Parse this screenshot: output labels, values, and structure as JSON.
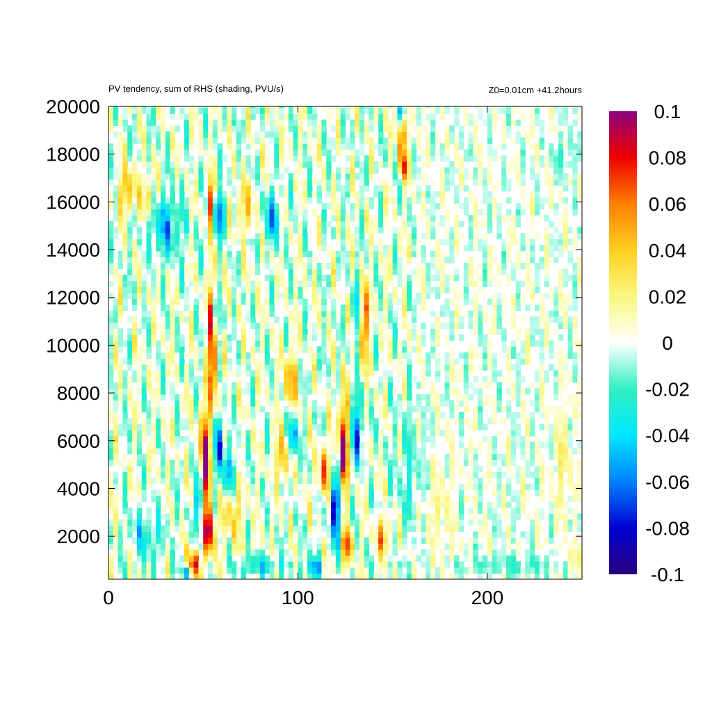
{
  "chart_data": {
    "type": "heatmap",
    "title": "PV tendency, sum of RHS (shading, PVU/s)",
    "subtitle": "Z0=0.01cm   +41.2hours",
    "xlabel": "",
    "ylabel": "",
    "xlim": [
      0,
      250
    ],
    "ylim": [
      200,
      20000
    ],
    "x_ticks": [
      0,
      100,
      200
    ],
    "y_ticks": [
      2000,
      4000,
      6000,
      8000,
      10000,
      12000,
      14000,
      16000,
      18000,
      20000
    ],
    "colorbar": {
      "min": -0.1,
      "max": 0.1,
      "ticks": [
        0.1,
        0.08,
        0.06,
        0.04,
        0.02,
        0,
        -0.02,
        -0.04,
        -0.06,
        -0.08,
        -0.1
      ],
      "tick_labels": [
        "0.1",
        "0.08",
        "0.06",
        "0.04",
        "0.02",
        "0",
        "-0.02",
        "-0.04",
        "-0.06",
        "-0.08",
        "-0.1"
      ],
      "colors": [
        "#2a0080",
        "#0000d0",
        "#0080ff",
        "#00e8ff",
        "#30f0c0",
        "#ffffff",
        "#f8f880",
        "#ffd020",
        "#ff8000",
        "#f00000",
        "#8a0080"
      ]
    },
    "grid": false,
    "features": [
      {
        "x": 55,
        "y": 10000,
        "sx": 1.6,
        "sy": 1800,
        "value": 0.1
      },
      {
        "x": 57,
        "y": 11000,
        "sx": 1.2,
        "sy": 900,
        "value": -0.06
      },
      {
        "x": 51,
        "y": 5000,
        "sx": 2.0,
        "sy": 1500,
        "value": 0.1
      },
      {
        "x": 48,
        "y": 3600,
        "sx": 1.4,
        "sy": 900,
        "value": -0.08
      },
      {
        "x": 53,
        "y": 2200,
        "sx": 1.8,
        "sy": 700,
        "value": 0.09
      },
      {
        "x": 45,
        "y": 800,
        "sx": 2.2,
        "sy": 400,
        "value": 0.09
      },
      {
        "x": 42,
        "y": 500,
        "sx": 1.2,
        "sy": 250,
        "value": -0.1
      },
      {
        "x": 58,
        "y": 6000,
        "sx": 1.5,
        "sy": 900,
        "value": -0.07
      },
      {
        "x": 65,
        "y": 3000,
        "sx": 4.5,
        "sy": 900,
        "value": 0.035
      },
      {
        "x": 63,
        "y": 4600,
        "sx": 3.5,
        "sy": 800,
        "value": -0.04
      },
      {
        "x": 124,
        "y": 5800,
        "sx": 1.8,
        "sy": 1500,
        "value": 0.095
      },
      {
        "x": 120,
        "y": 3200,
        "sx": 1.8,
        "sy": 1000,
        "value": -0.09
      },
      {
        "x": 126,
        "y": 1600,
        "sx": 1.8,
        "sy": 500,
        "value": 0.07
      },
      {
        "x": 131,
        "y": 6500,
        "sx": 2.0,
        "sy": 1000,
        "value": -0.06
      },
      {
        "x": 114,
        "y": 4700,
        "sx": 2.0,
        "sy": 700,
        "value": 0.06
      },
      {
        "x": 135,
        "y": 11000,
        "sx": 2.0,
        "sy": 1200,
        "value": 0.06
      },
      {
        "x": 131,
        "y": 11500,
        "sx": 1.4,
        "sy": 1000,
        "value": -0.045
      },
      {
        "x": 96,
        "y": 8500,
        "sx": 2.5,
        "sy": 900,
        "value": 0.05
      },
      {
        "x": 97,
        "y": 6200,
        "sx": 2.0,
        "sy": 700,
        "value": -0.06
      },
      {
        "x": 92,
        "y": 5400,
        "sx": 2.5,
        "sy": 700,
        "value": 0.05
      },
      {
        "x": 145,
        "y": 2000,
        "sx": 2.5,
        "sy": 500,
        "value": 0.05
      },
      {
        "x": 108,
        "y": 700,
        "sx": 3.0,
        "sy": 300,
        "value": -0.05
      },
      {
        "x": 155,
        "y": 18800,
        "sx": 1.2,
        "sy": 800,
        "value": 0.09
      },
      {
        "x": 155,
        "y": 19800,
        "sx": 1.2,
        "sy": 400,
        "value": -0.07
      },
      {
        "x": 156,
        "y": 17500,
        "sx": 1.2,
        "sy": 400,
        "value": 0.06
      },
      {
        "x": 54,
        "y": 16000,
        "sx": 1.2,
        "sy": 700,
        "value": 0.07
      },
      {
        "x": 59,
        "y": 15500,
        "sx": 2.0,
        "sy": 700,
        "value": -0.06
      },
      {
        "x": 30,
        "y": 15000,
        "sx": 6.0,
        "sy": 900,
        "value": -0.045
      },
      {
        "x": 10,
        "y": 16500,
        "sx": 3.0,
        "sy": 700,
        "value": 0.045
      },
      {
        "x": 21,
        "y": 16200,
        "sx": 2.5,
        "sy": 600,
        "value": 0.04
      },
      {
        "x": 86,
        "y": 15300,
        "sx": 3.0,
        "sy": 700,
        "value": -0.05
      },
      {
        "x": 72,
        "y": 15800,
        "sx": 4.0,
        "sy": 700,
        "value": 0.03
      },
      {
        "x": 240,
        "y": 5000,
        "sx": 3.0,
        "sy": 1500,
        "value": 0.035
      },
      {
        "x": 245,
        "y": 1000,
        "sx": 4.0,
        "sy": 400,
        "value": 0.03
      },
      {
        "x": 212,
        "y": 800,
        "sx": 20.0,
        "sy": 300,
        "value": -0.03
      },
      {
        "x": 175,
        "y": 3000,
        "sx": 5.0,
        "sy": 1500,
        "value": 0.025
      },
      {
        "x": 20,
        "y": 2000,
        "sx": 6.0,
        "sy": 700,
        "value": -0.03
      },
      {
        "x": 80,
        "y": 800,
        "sx": 8.0,
        "sy": 300,
        "value": -0.035
      },
      {
        "x": 240,
        "y": 18000,
        "sx": 4.0,
        "sy": 600,
        "value": -0.03
      },
      {
        "x": 160,
        "y": 5000,
        "sx": 6.0,
        "sy": 1800,
        "value": -0.02
      }
    ]
  }
}
